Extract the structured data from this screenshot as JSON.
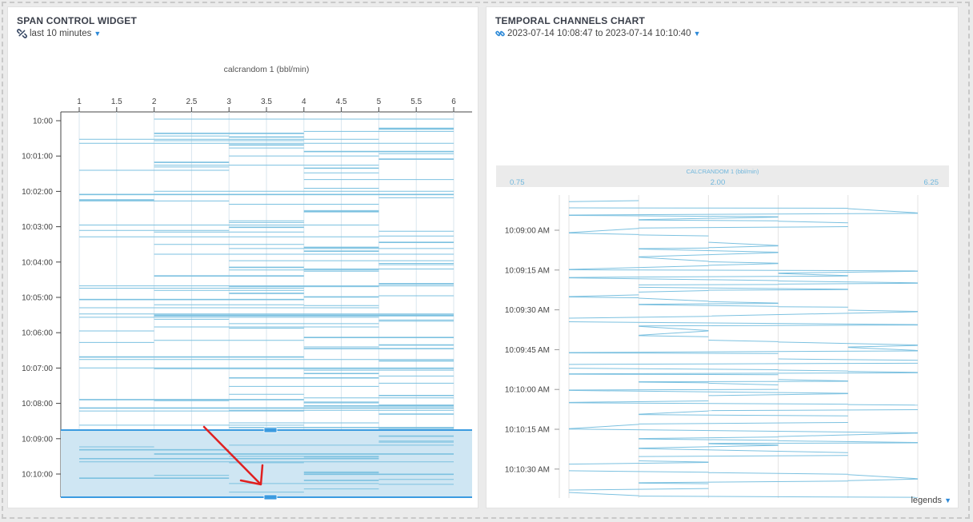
{
  "left_widget": {
    "title": "SPAN CONTROL WIDGET",
    "range_label": "last 10 minutes",
    "icons": {
      "range": "broken-link-icon",
      "dropdown": "caret-down-icon"
    }
  },
  "right_widget": {
    "title": "TEMPORAL CHANNELS CHART",
    "range_label": "2023-07-14 10:08:47 to 2023-07-14 10:10:40",
    "icons": {
      "range": "link-icon",
      "dropdown": "caret-down-icon"
    },
    "legends_label": "legends"
  },
  "colors": {
    "series": "#7cc1e0",
    "series_dark": "#3e9bd0",
    "selection_fill": "#cfe6f3",
    "selection_border": "#3b9be0",
    "annotation_arrow": "#e02020",
    "header_band": "#ebebeb"
  },
  "chart_data": [
    {
      "type": "line",
      "name": "span-control",
      "title": "calcrandom 1 (bbl/min)",
      "x_axis": {
        "position": "top",
        "ticks": [
          "1",
          "1.5",
          "2",
          "2.5",
          "3",
          "3.5",
          "4",
          "4.5",
          "5",
          "5.5",
          "6"
        ],
        "range": [
          1,
          6
        ]
      },
      "y_axis": {
        "ticks": [
          "10:00",
          "10:01:00",
          "10:02:00",
          "10:03:00",
          "10:04:00",
          "10:05:00",
          "10:06:00",
          "10:07:00",
          "10:08:00",
          "10:09:00",
          "10:10:00"
        ]
      },
      "series_values_range": [
        1,
        6
      ],
      "selection": {
        "from": "10:08:47",
        "to": "10:10:40"
      },
      "grid": true
    },
    {
      "type": "line",
      "name": "temporal-channels",
      "x_axis": {
        "label": "CALCRANDOM 1 (bbl/min)",
        "ticks": [
          "0.75",
          "2.00",
          "6.25"
        ],
        "position": "top"
      },
      "y_axis": {
        "ticks": [
          "10:09:00 AM",
          "10:09:15 AM",
          "10:09:30 AM",
          "10:09:45 AM",
          "10:10:00 AM",
          "10:10:15 AM",
          "10:10:30 AM"
        ]
      },
      "series_values_range": [
        1,
        6
      ],
      "grid": true
    }
  ]
}
